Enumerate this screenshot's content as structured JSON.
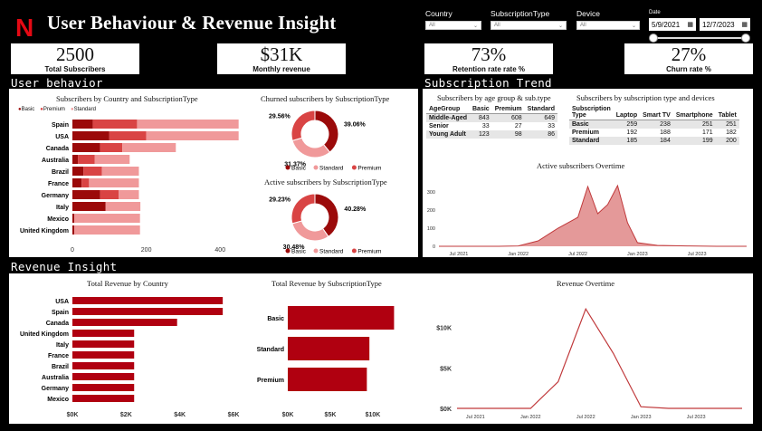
{
  "header": {
    "title": "User Behaviour & Revenue Insight",
    "logo_letter": "N"
  },
  "colors": {
    "basic": "#9b0a0a",
    "premium": "#d94444",
    "standard": "#f0999a",
    "revenue": "#b00010",
    "line": "#c0393b",
    "area": "#e49999"
  },
  "filters": {
    "country": {
      "label": "Country",
      "value": "All"
    },
    "subscription_type": {
      "label": "SubscriptionType",
      "value": "All"
    },
    "device": {
      "label": "Device",
      "value": "All"
    },
    "date": {
      "label": "Date",
      "start": "5/9/2021",
      "end": "12/7/2023"
    }
  },
  "kpis": [
    {
      "value": "2500",
      "label": "Total Subscribers"
    },
    {
      "value": "$31K",
      "label": "Monthly revenue"
    },
    {
      "value": "73%",
      "label": "Retention rate rate %"
    },
    {
      "value": "27%",
      "label": "Churn rate %"
    }
  ],
  "sections": {
    "user_behavior": "User behavior",
    "subscription_trend": "Subscription Trend",
    "revenue_insight": "Revenue Insight"
  },
  "age_table": {
    "title": "Subscribers by age group & sub.type",
    "headers": [
      "AgeGroup",
      "Basic",
      "Premium",
      "Standard"
    ],
    "rows": [
      [
        "Middle-Aged",
        "843",
        "608",
        "649"
      ],
      [
        "Senior",
        "33",
        "27",
        "33"
      ],
      [
        "Young Adult",
        "123",
        "98",
        "86"
      ]
    ]
  },
  "device_table": {
    "title": "Subscribers by subscription type and devices",
    "headers": [
      "Subscription Type",
      "Laptop",
      "Smart TV",
      "Smartphone",
      "Tablet"
    ],
    "rows": [
      [
        "Basic",
        "259",
        "238",
        "251",
        "251"
      ],
      [
        "Premium",
        "192",
        "188",
        "171",
        "182"
      ],
      [
        "Standard",
        "185",
        "184",
        "199",
        "200"
      ]
    ]
  },
  "chart_data": [
    {
      "id": "country_sub",
      "type": "bar",
      "title": "Subscribers by Country and SubscriptionType",
      "categories": [
        "Spain",
        "USA",
        "Canada",
        "Australia",
        "Brazil",
        "France",
        "Germany",
        "Italy",
        "Mexico",
        "United Kingdom"
      ],
      "series": [
        {
          "name": "Basic",
          "values": [
            55,
            100,
            75,
            15,
            30,
            25,
            75,
            90,
            5,
            5
          ]
        },
        {
          "name": "Premium",
          "values": [
            120,
            100,
            60,
            45,
            50,
            20,
            50,
            0,
            0,
            0
          ]
        },
        {
          "name": "Standard",
          "values": [
            275,
            250,
            145,
            95,
            100,
            135,
            55,
            94,
            178,
            178
          ]
        }
      ],
      "xticks": [
        "0",
        "200",
        "400"
      ],
      "xlim": [
        0,
        490
      ]
    },
    {
      "id": "churned_donut",
      "type": "pie",
      "title": "Churned subscribers by SubscriptionType",
      "categories": [
        "Basic",
        "Standard",
        "Premium"
      ],
      "values": [
        39.06,
        31.37,
        29.56
      ],
      "labels": [
        "39.06%",
        "31.37%",
        "29.56%"
      ],
      "legend": [
        "Basic",
        "Standard",
        "Premium"
      ]
    },
    {
      "id": "active_donut",
      "type": "pie",
      "title": "Active subscribers by SubscriptionType",
      "categories": [
        "Basic",
        "Standard",
        "Premium"
      ],
      "values": [
        40.28,
        30.48,
        29.23
      ],
      "labels": [
        "40.28%",
        "30.48%",
        "29.23%"
      ],
      "legend": [
        "Basic",
        "Standard",
        "Premium"
      ]
    },
    {
      "id": "active_overtime",
      "type": "area",
      "title": "Active subscribers Overtime",
      "x": [
        "2021-05",
        "2021-08",
        "2021-11",
        "2022-01",
        "2022-03",
        "2022-05",
        "2022-07",
        "2022-08",
        "2022-09",
        "2022-10",
        "2022-11",
        "2022-12",
        "2023-01",
        "2023-03",
        "2023-06",
        "2023-09",
        "2023-12"
      ],
      "y": [
        0,
        0,
        0,
        2,
        30,
        100,
        160,
        330,
        180,
        230,
        335,
        130,
        20,
        5,
        2,
        0,
        0
      ],
      "ylim": [
        0,
        370
      ],
      "yticks": [
        "300",
        "200",
        "100",
        "0"
      ],
      "xticks": [
        "Jul 2021",
        "Jan 2022",
        "Jul 2022",
        "Jan 2023",
        "Jul 2023"
      ]
    },
    {
      "id": "revenue_country",
      "type": "bar",
      "title": "Total Revenue by Country",
      "categories": [
        "USA",
        "Spain",
        "Canada",
        "United Kingdom",
        "Italy",
        "France",
        "Brazil",
        "Australia",
        "Germany",
        "Mexico"
      ],
      "values": [
        5.6,
        5.6,
        3.9,
        2.3,
        2.3,
        2.3,
        2.3,
        2.3,
        2.3,
        2.3
      ],
      "xticks": [
        "$0K",
        "$2K",
        "$4K",
        "$6K"
      ],
      "xlim": [
        0,
        6
      ]
    },
    {
      "id": "revenue_subtype",
      "type": "bar",
      "title": "Total Revenue by SubscriptionType",
      "categories": [
        "Basic",
        "Standard",
        "Premium"
      ],
      "values": [
        12.5,
        9.6,
        9.3
      ],
      "xticks": [
        "$0K",
        "$5K",
        "$10K"
      ],
      "xlim": [
        0,
        13.2
      ]
    },
    {
      "id": "revenue_overtime",
      "type": "line",
      "title": "Revenue Overtime",
      "x": [
        "2021-05",
        "2021-09",
        "2022-01",
        "2022-04",
        "2022-07",
        "2022-10",
        "2023-01",
        "2023-04",
        "2023-12"
      ],
      "y": [
        0,
        0,
        0,
        3.3,
        12.3,
        6.8,
        0.2,
        0,
        0
      ],
      "ylim": [
        0,
        14
      ],
      "yticks": [
        "$10K",
        "$5K",
        "$0K"
      ],
      "xticks": [
        "Jul 2021",
        "Jan 2022",
        "Jul 2022",
        "Jan 2023",
        "Jul 2023"
      ]
    }
  ]
}
